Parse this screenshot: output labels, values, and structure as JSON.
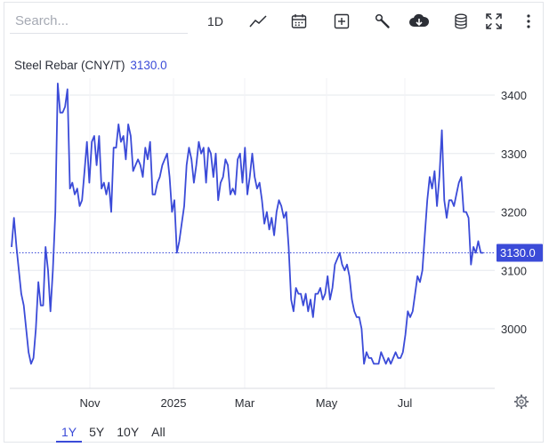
{
  "toolbar": {
    "search_placeholder": "Search...",
    "interval_label": "1D",
    "icons": [
      "line-chart-icon",
      "calendar-icon",
      "plus-box-icon",
      "wrench-icon",
      "cloud-download-icon",
      "database-icon",
      "fullscreen-icon",
      "more-vertical-icon"
    ]
  },
  "legend": {
    "symbol": "Steel Rebar (CNY/T)",
    "price": "3130.0"
  },
  "ranges": [
    {
      "label": "1Y",
      "active": true
    },
    {
      "label": "5Y",
      "active": false
    },
    {
      "label": "10Y",
      "active": false
    },
    {
      "label": "All",
      "active": false
    }
  ],
  "colors": {
    "line": "#3b4bd8",
    "grid": "#e6e8ee",
    "price_tag": "#3b4bd8"
  },
  "chart_data": {
    "type": "line",
    "title": "",
    "xlabel": "",
    "ylabel": "",
    "x_ticks": [
      "Nov",
      "2025",
      "Mar",
      "May",
      "Jul"
    ],
    "y_ticks": [
      3000,
      3100,
      3200,
      3300,
      3400
    ],
    "ylim": [
      2900,
      3450
    ],
    "grid": true,
    "last_price": 3130.0,
    "last_price_label": "3130.0",
    "series": [
      {
        "values": [
          3140,
          3190,
          3140,
          3100,
          3060,
          3040,
          3000,
          2960,
          2940,
          2950,
          3000,
          3080,
          3040,
          3040,
          3140,
          3100,
          3030,
          3100,
          3200,
          3420,
          3370,
          3370,
          3380,
          3410,
          3240,
          3250,
          3230,
          3240,
          3210,
          3220,
          3270,
          3320,
          3250,
          3320,
          3330,
          3280,
          3330,
          3240,
          3250,
          3230,
          3250,
          3200,
          3310,
          3310,
          3350,
          3320,
          3330,
          3290,
          3350,
          3330,
          3270,
          3280,
          3290,
          3280,
          3260,
          3310,
          3290,
          3320,
          3230,
          3230,
          3250,
          3260,
          3280,
          3290,
          3300,
          3260,
          3200,
          3220,
          3130,
          3150,
          3180,
          3210,
          3280,
          3310,
          3290,
          3250,
          3280,
          3320,
          3300,
          3310,
          3250,
          3310,
          3300,
          3260,
          3300,
          3220,
          3250,
          3260,
          3290,
          3280,
          3230,
          3240,
          3230,
          3290,
          3300,
          3250,
          3310,
          3230,
          3260,
          3300,
          3260,
          3240,
          3250,
          3220,
          3180,
          3200,
          3170,
          3190,
          3160,
          3200,
          3220,
          3210,
          3190,
          3200,
          3140,
          3050,
          3030,
          3070,
          3060,
          3060,
          3040,
          3060,
          3030,
          3050,
          3020,
          3060,
          3060,
          3070,
          3050,
          3060,
          3090,
          3050,
          3070,
          3110,
          3120,
          3130,
          3110,
          3100,
          3110,
          3090,
          3050,
          3030,
          3020,
          3020,
          3000,
          2940,
          2960,
          2950,
          2950,
          2940,
          2940,
          2940,
          2960,
          2950,
          2940,
          2950,
          2940,
          2950,
          2960,
          2950,
          2950,
          2960,
          2990,
          3030,
          3020,
          3030,
          3060,
          3090,
          3080,
          3100,
          3160,
          3220,
          3260,
          3240,
          3270,
          3210,
          3260,
          3340,
          3220,
          3190,
          3220,
          3220,
          3210,
          3230,
          3250,
          3260,
          3200,
          3200,
          3190,
          3110,
          3140,
          3130,
          3150,
          3130,
          3130
        ]
      }
    ]
  }
}
